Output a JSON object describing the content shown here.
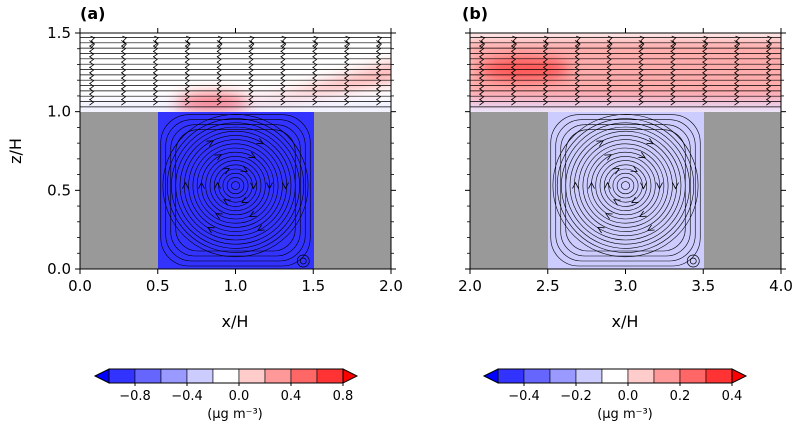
{
  "chart_data": [
    {
      "type": "heatmap",
      "panel_label": "(a)",
      "xlabel": "x/H",
      "ylabel": "z/H",
      "xlim": [
        0.0,
        2.0
      ],
      "ylim": [
        0.0,
        1.5
      ],
      "xticks": [
        "0.0",
        "0.5",
        "1.0",
        "1.5",
        "2.0"
      ],
      "yticks": [
        "0.0",
        "0.5",
        "1.0",
        "1.5"
      ],
      "buildings": [
        [
          0.0,
          0.5,
          1.0
        ],
        [
          1.5,
          2.0,
          1.0
        ]
      ],
      "canyon_value": -0.8,
      "plume_value": 0.6,
      "vortex_center": [
        1.0,
        0.53
      ],
      "colorbar": {
        "label": "(μg m⁻³)",
        "ticks": [
          "−0.8",
          "−0.4",
          "0.0",
          "0.4",
          "0.8"
        ],
        "range": [
          -1.0,
          1.0
        ],
        "colors": [
          "#0000ff",
          "#3333ff",
          "#6666ff",
          "#9999ff",
          "#ccccff",
          "#ffffff",
          "#ffcccc",
          "#ff9999",
          "#ff6666",
          "#ff3333",
          "#ff0000"
        ]
      }
    },
    {
      "type": "heatmap",
      "panel_label": "(b)",
      "xlabel": "x/H",
      "ylabel": "",
      "xlim": [
        2.0,
        4.0
      ],
      "ylim": [
        0.0,
        1.5
      ],
      "xticks": [
        "2.0",
        "2.5",
        "3.0",
        "3.5",
        "4.0"
      ],
      "yticks": [],
      "buildings": [
        [
          2.0,
          2.5,
          1.0
        ],
        [
          3.5,
          4.0,
          1.0
        ]
      ],
      "canyon_value": -0.1,
      "plume_value": 0.3,
      "vortex_center": [
        3.0,
        0.53
      ],
      "colorbar": {
        "label": "(μg m⁻³)",
        "ticks": [
          "−0.4",
          "−0.2",
          "0.0",
          "0.2",
          "0.4"
        ],
        "range": [
          -0.5,
          0.5
        ],
        "colors": [
          "#0000ff",
          "#3333ff",
          "#6666ff",
          "#9999ff",
          "#ccccff",
          "#ffffff",
          "#ffcccc",
          "#ff9999",
          "#ff6666",
          "#ff3333",
          "#ff0000"
        ]
      }
    }
  ]
}
